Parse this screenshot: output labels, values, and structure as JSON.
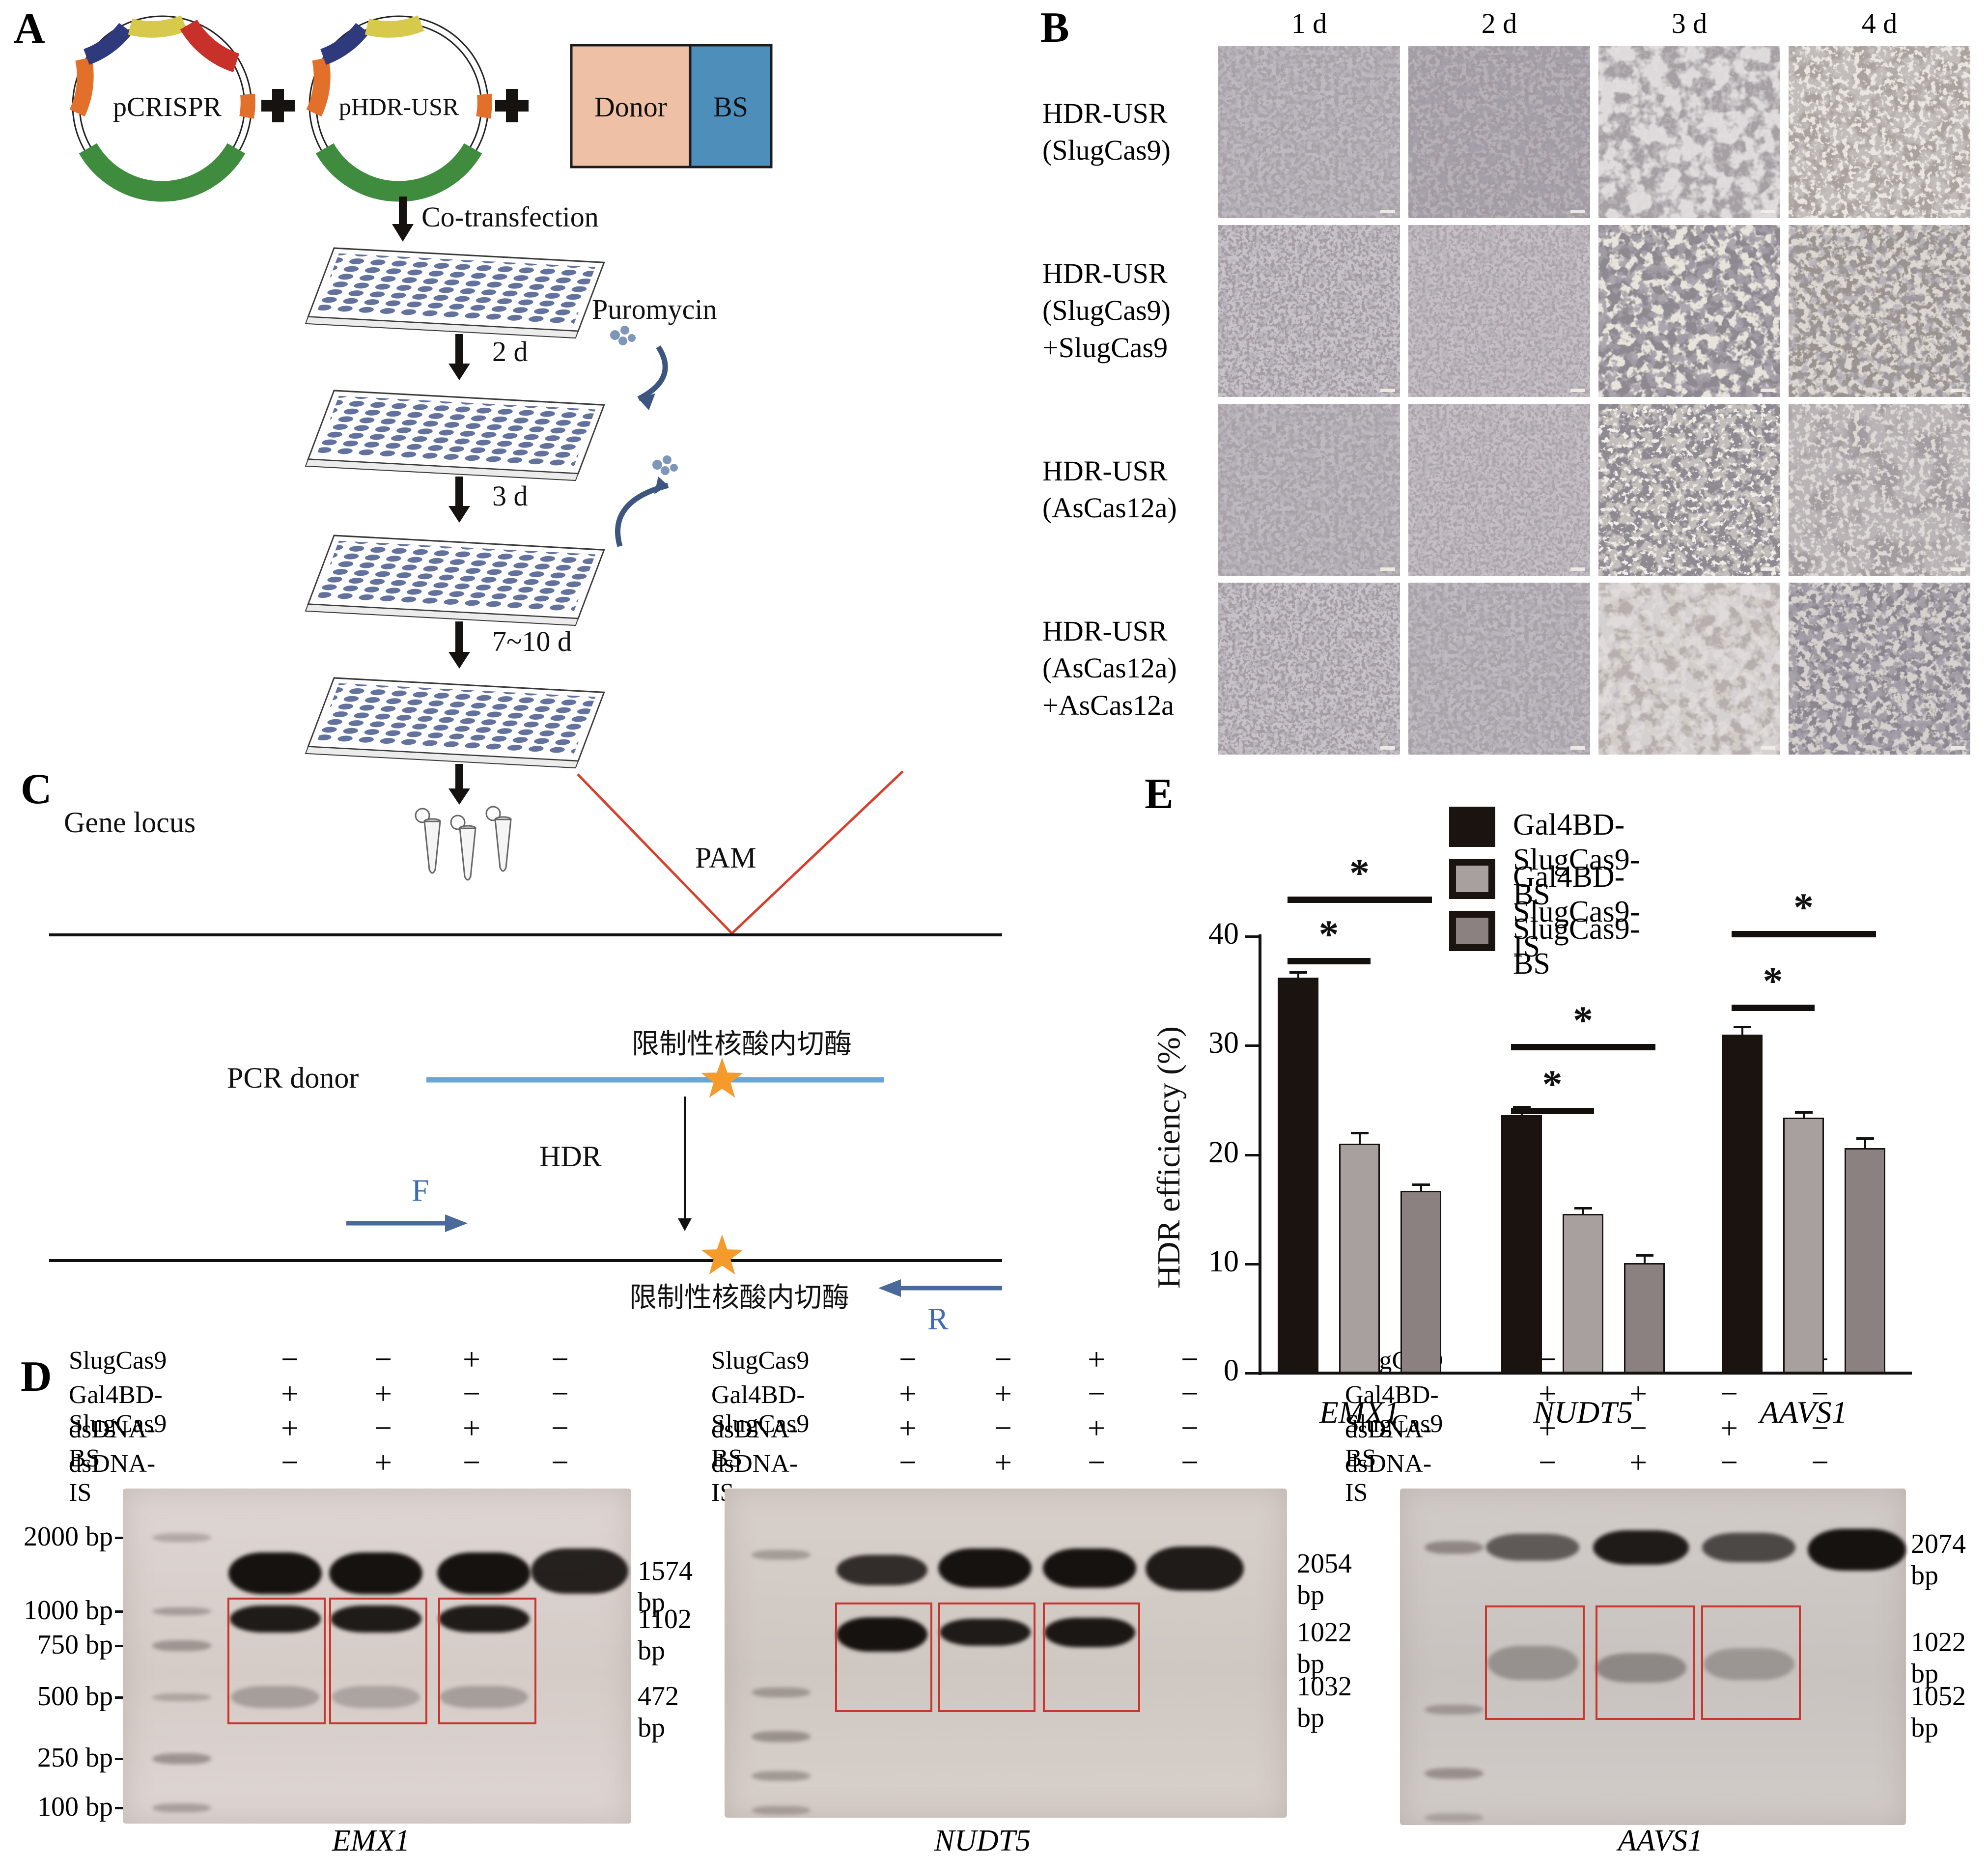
{
  "panelA": {
    "letter": "A",
    "plasmid1": "pCRISPR",
    "plasmid2": "pHDR-USR",
    "donor": "Donor",
    "bs": "BS",
    "cotransfection": "Co-transfection",
    "puromycin": "Puromycin",
    "steps": [
      "2 d",
      "3 d",
      "7~10 d"
    ]
  },
  "panelB": {
    "letter": "B",
    "col_headers": [
      "1 d",
      "2 d",
      "3 d",
      "4 d"
    ],
    "rows": [
      {
        "label_lines": [
          "HDR-USR",
          "(SlugCas9)"
        ]
      },
      {
        "label_lines": [
          "HDR-USR",
          "(SlugCas9)",
          "+SlugCas9"
        ]
      },
      {
        "label_lines": [
          "HDR-USR",
          "(AsCas12a)"
        ]
      },
      {
        "label_lines": [
          "HDR-USR",
          "(AsCas12a)",
          "+AsCas12a"
        ]
      }
    ],
    "tile_variants": [
      [
        "speckle-med",
        "blotch-dark",
        "smooth-gray",
        "colonies-light"
      ],
      [
        "speckle-coarse",
        "speckle-med2",
        "patches-contrast",
        "patches-tan"
      ],
      [
        "speckle-med",
        "speckle-med2",
        "colonies-bright",
        "colonies-sparse"
      ],
      [
        "speckle-coarse",
        "speckle-med",
        "smooth-light",
        "patches-dark"
      ]
    ]
  },
  "panelC": {
    "letter": "C",
    "gene_locus": "Gene locus",
    "pam": "PAM",
    "enzyme_top": "限制性核酸内切酶",
    "pcr_donor": "PCR donor",
    "hdr": "HDR",
    "f_primer": "F",
    "enzyme_bottom": "限制性核酸内切酶",
    "r_primer": "R"
  },
  "panelD": {
    "letter": "D",
    "conditions": [
      "SlugCas9",
      "Gal4BD-SlugCas9",
      "dsDNA-BS",
      "dsDNA-IS"
    ],
    "signs": [
      [
        "−",
        "−",
        "+",
        "−"
      ],
      [
        "+",
        "+",
        "−",
        "−"
      ],
      [
        "+",
        "−",
        "+",
        "−"
      ],
      [
        "−",
        "+",
        "−",
        "−"
      ]
    ],
    "gels": [
      {
        "gene": "EMX1",
        "ladder_labels": [
          "2000 bp",
          "1000 bp",
          "750 bp",
          "500 bp",
          "250 bp",
          "100 bp"
        ],
        "band_labels": [
          "1574 bp",
          "1102 bp",
          "472 bp"
        ]
      },
      {
        "gene": "NUDT5",
        "ladder_labels": [],
        "band_labels": [
          "2054 bp",
          "1022 bp",
          "1032 bp"
        ]
      },
      {
        "gene": "AAVS1",
        "ladder_labels": [],
        "band_labels": [
          "2074 bp",
          "1022 bp",
          "1052 bp"
        ]
      }
    ]
  },
  "panelE": {
    "letter": "E"
  },
  "chart_data": {
    "type": "bar",
    "categories": [
      "EMX1",
      "NUDT5",
      "AAVS1"
    ],
    "series": [
      {
        "name": "Gal4BD-SlugCas9-BS",
        "color": "#1a1310",
        "values": [
          36.2,
          23.6,
          31.0
        ],
        "errors": [
          0.5,
          0.8,
          0.7
        ]
      },
      {
        "name": "Gal4BD-SlugCas9-IS",
        "color": "#a89f9f",
        "values": [
          21.0,
          14.6,
          23.4
        ],
        "errors": [
          1.0,
          0.5,
          0.5
        ]
      },
      {
        "name": "SlugCas9-BS",
        "color": "#8b8181",
        "values": [
          16.7,
          10.1,
          20.6
        ],
        "errors": [
          0.6,
          0.7,
          0.9
        ]
      }
    ],
    "ylabel": "HDR efficiency (%)",
    "yticks": [
      0,
      10,
      20,
      30,
      40
    ],
    "ylim": [
      0,
      45
    ],
    "grid": false,
    "legend_position": "top",
    "significance": [
      {
        "cat": 0,
        "from": 0,
        "to": 1,
        "label": "*"
      },
      {
        "cat": 0,
        "from": 0,
        "to": 2,
        "label": "*"
      },
      {
        "cat": 1,
        "from": 0,
        "to": 1,
        "label": "*"
      },
      {
        "cat": 1,
        "from": 0,
        "to": 2,
        "label": "*"
      },
      {
        "cat": 2,
        "from": 0,
        "to": 1,
        "label": "*"
      },
      {
        "cat": 2,
        "from": 0,
        "to": 2,
        "label": "*"
      }
    ]
  }
}
